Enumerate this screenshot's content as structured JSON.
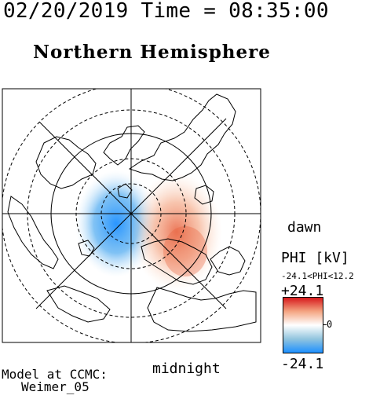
{
  "header": {
    "datetime": "02/20/2019 Time = 08:35:00",
    "title": "Northern Hemisphere"
  },
  "map": {
    "orientation_labels": {
      "dawn": "dawn",
      "midnight": "midnight"
    },
    "potential_cells": [
      {
        "sign": "negative",
        "description": "blue cell on dusk/midnight side"
      },
      {
        "sign": "positive",
        "description": "orange-red cell on dawn side"
      }
    ]
  },
  "colorbar": {
    "label": "PHI [kV]",
    "range_text": "-24.1<PHI<12.2",
    "max_label": "+24.1",
    "zero_label": "0",
    "min_label": "-24.1",
    "colors": {
      "max": "#d7191c",
      "mid": "#ffffff",
      "min": "#1e90ff"
    }
  },
  "credit": {
    "line1": "Model at CCMC:",
    "line2": "Weimer_05"
  }
}
